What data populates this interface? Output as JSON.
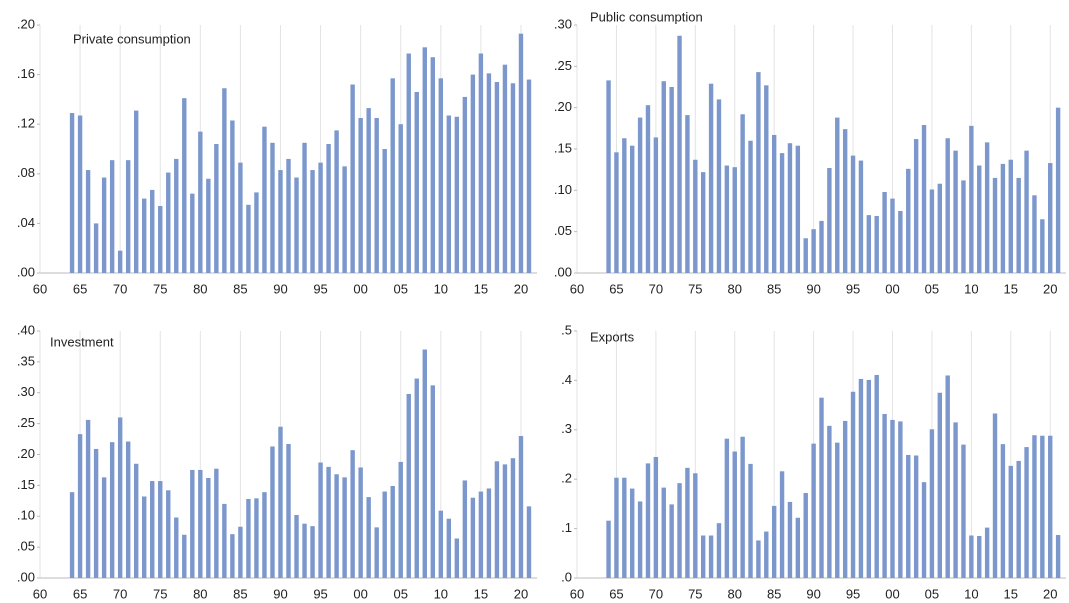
{
  "chart_data": [
    {
      "type": "bar",
      "title": "Private consumption",
      "color": "#7b97cc",
      "grid": "x",
      "x": [
        1964,
        1965,
        1966,
        1967,
        1968,
        1969,
        1970,
        1971,
        1972,
        1973,
        1974,
        1975,
        1976,
        1977,
        1978,
        1979,
        1980,
        1981,
        1982,
        1983,
        1984,
        1985,
        1986,
        1987,
        1988,
        1989,
        1990,
        1991,
        1992,
        1993,
        1994,
        1995,
        1996,
        1997,
        1998,
        1999,
        2000,
        2001,
        2002,
        2003,
        2004,
        2005,
        2006,
        2007,
        2008,
        2009,
        2010,
        2011,
        2012,
        2013,
        2014,
        2015,
        2016,
        2017,
        2018,
        2019,
        2020,
        2021
      ],
      "values": [
        0.129,
        0.127,
        0.083,
        0.04,
        0.077,
        0.091,
        0.018,
        0.091,
        0.131,
        0.06,
        0.067,
        0.054,
        0.081,
        0.092,
        0.141,
        0.064,
        0.114,
        0.076,
        0.104,
        0.149,
        0.123,
        0.089,
        0.055,
        0.065,
        0.118,
        0.105,
        0.083,
        0.092,
        0.077,
        0.105,
        0.083,
        0.089,
        0.104,
        0.115,
        0.086,
        0.152,
        0.125,
        0.133,
        0.125,
        0.1,
        0.157,
        0.12,
        0.177,
        0.146,
        0.182,
        0.174,
        0.157,
        0.127,
        0.126,
        0.142,
        0.16,
        0.177,
        0.161,
        0.154,
        0.168,
        0.153,
        0.193,
        0.156
      ],
      "xlim": [
        1960,
        2022
      ],
      "xticks": [
        {
          "value": 1960,
          "label": "60"
        },
        {
          "value": 1965,
          "label": "65"
        },
        {
          "value": 1970,
          "label": "70"
        },
        {
          "value": 1975,
          "label": "75"
        },
        {
          "value": 1980,
          "label": "80"
        },
        {
          "value": 1985,
          "label": "85"
        },
        {
          "value": 1990,
          "label": "90"
        },
        {
          "value": 1995,
          "label": "95"
        },
        {
          "value": 2000,
          "label": "00"
        },
        {
          "value": 2005,
          "label": "05"
        },
        {
          "value": 2010,
          "label": "10"
        },
        {
          "value": 2015,
          "label": "15"
        },
        {
          "value": 2020,
          "label": "20"
        }
      ],
      "ylim": [
        0,
        0.2
      ],
      "yticks": [
        {
          "value": 0,
          "label": ".00"
        },
        {
          "value": 0.04,
          "label": ".04"
        },
        {
          "value": 0.08,
          "label": ".08"
        },
        {
          "value": 0.12,
          "label": ".12"
        },
        {
          "value": 0.16,
          "label": ".16"
        },
        {
          "value": 0.2,
          "label": ".20"
        }
      ]
    },
    {
      "type": "bar",
      "title": "Public consumption",
      "color": "#7b97cc",
      "grid": "x",
      "x": [
        1964,
        1965,
        1966,
        1967,
        1968,
        1969,
        1970,
        1971,
        1972,
        1973,
        1974,
        1975,
        1976,
        1977,
        1978,
        1979,
        1980,
        1981,
        1982,
        1983,
        1984,
        1985,
        1986,
        1987,
        1988,
        1989,
        1990,
        1991,
        1992,
        1993,
        1994,
        1995,
        1996,
        1997,
        1998,
        1999,
        2000,
        2001,
        2002,
        2003,
        2004,
        2005,
        2006,
        2007,
        2008,
        2009,
        2010,
        2011,
        2012,
        2013,
        2014,
        2015,
        2016,
        2017,
        2018,
        2019,
        2020,
        2021
      ],
      "values": [
        0.233,
        0.146,
        0.163,
        0.154,
        0.188,
        0.203,
        0.164,
        0.232,
        0.225,
        0.287,
        0.191,
        0.137,
        0.122,
        0.229,
        0.21,
        0.13,
        0.128,
        0.192,
        0.16,
        0.243,
        0.227,
        0.167,
        0.145,
        0.157,
        0.154,
        0.042,
        0.053,
        0.063,
        0.127,
        0.188,
        0.174,
        0.142,
        0.136,
        0.07,
        0.069,
        0.098,
        0.09,
        0.075,
        0.126,
        0.162,
        0.179,
        0.101,
        0.108,
        0.163,
        0.148,
        0.112,
        0.178,
        0.13,
        0.158,
        0.115,
        0.132,
        0.137,
        0.115,
        0.148,
        0.094,
        0.065,
        0.133,
        0.2
      ],
      "xlim": [
        1960,
        2022
      ],
      "xticks": [
        {
          "value": 1960,
          "label": "60"
        },
        {
          "value": 1965,
          "label": "65"
        },
        {
          "value": 1970,
          "label": "70"
        },
        {
          "value": 1975,
          "label": "75"
        },
        {
          "value": 1980,
          "label": "80"
        },
        {
          "value": 1985,
          "label": "85"
        },
        {
          "value": 1990,
          "label": "90"
        },
        {
          "value": 1995,
          "label": "95"
        },
        {
          "value": 2000,
          "label": "00"
        },
        {
          "value": 2005,
          "label": "05"
        },
        {
          "value": 2010,
          "label": "10"
        },
        {
          "value": 2015,
          "label": "15"
        },
        {
          "value": 2020,
          "label": "20"
        }
      ],
      "ylim": [
        0,
        0.3
      ],
      "yticks": [
        {
          "value": 0,
          "label": ".00"
        },
        {
          "value": 0.05,
          "label": ".05"
        },
        {
          "value": 0.1,
          "label": ".10"
        },
        {
          "value": 0.15,
          "label": ".15"
        },
        {
          "value": 0.2,
          "label": ".20"
        },
        {
          "value": 0.25,
          "label": ".25"
        },
        {
          "value": 0.3,
          "label": ".30"
        }
      ]
    },
    {
      "type": "bar",
      "title": "Investment",
      "color": "#7b97cc",
      "grid": "x",
      "x": [
        1964,
        1965,
        1966,
        1967,
        1968,
        1969,
        1970,
        1971,
        1972,
        1973,
        1974,
        1975,
        1976,
        1977,
        1978,
        1979,
        1980,
        1981,
        1982,
        1983,
        1984,
        1985,
        1986,
        1987,
        1988,
        1989,
        1990,
        1991,
        1992,
        1993,
        1994,
        1995,
        1996,
        1997,
        1998,
        1999,
        2000,
        2001,
        2002,
        2003,
        2004,
        2005,
        2006,
        2007,
        2008,
        2009,
        2010,
        2011,
        2012,
        2013,
        2014,
        2015,
        2016,
        2017,
        2018,
        2019,
        2020,
        2021
      ],
      "values": [
        0.139,
        0.233,
        0.256,
        0.209,
        0.163,
        0.22,
        0.26,
        0.221,
        0.185,
        0.132,
        0.157,
        0.157,
        0.142,
        0.098,
        0.07,
        0.175,
        0.175,
        0.162,
        0.177,
        0.12,
        0.071,
        0.083,
        0.128,
        0.129,
        0.139,
        0.213,
        0.245,
        0.217,
        0.102,
        0.088,
        0.084,
        0.187,
        0.18,
        0.168,
        0.163,
        0.207,
        0.179,
        0.131,
        0.082,
        0.14,
        0.149,
        0.188,
        0.298,
        0.323,
        0.37,
        0.312,
        0.109,
        0.096,
        0.064,
        0.158,
        0.13,
        0.14,
        0.145,
        0.189,
        0.184,
        0.194,
        0.23,
        0.116
      ],
      "xlim": [
        1960,
        2022
      ],
      "xticks": [
        {
          "value": 1960,
          "label": "60"
        },
        {
          "value": 1965,
          "label": "65"
        },
        {
          "value": 1970,
          "label": "70"
        },
        {
          "value": 1975,
          "label": "75"
        },
        {
          "value": 1980,
          "label": "80"
        },
        {
          "value": 1985,
          "label": "85"
        },
        {
          "value": 1990,
          "label": "90"
        },
        {
          "value": 1995,
          "label": "95"
        },
        {
          "value": 2000,
          "label": "00"
        },
        {
          "value": 2005,
          "label": "05"
        },
        {
          "value": 2010,
          "label": "10"
        },
        {
          "value": 2015,
          "label": "15"
        },
        {
          "value": 2020,
          "label": "20"
        }
      ],
      "ylim": [
        0,
        0.4
      ],
      "yticks": [
        {
          "value": 0,
          "label": ".00"
        },
        {
          "value": 0.05,
          "label": ".05"
        },
        {
          "value": 0.1,
          "label": ".10"
        },
        {
          "value": 0.15,
          "label": ".15"
        },
        {
          "value": 0.2,
          "label": ".20"
        },
        {
          "value": 0.25,
          "label": ".25"
        },
        {
          "value": 0.3,
          "label": ".30"
        },
        {
          "value": 0.35,
          "label": ".35"
        },
        {
          "value": 0.4,
          "label": ".40"
        }
      ]
    },
    {
      "type": "bar",
      "title": "Exports",
      "color": "#7b97cc",
      "grid": "x",
      "x": [
        1964,
        1965,
        1966,
        1967,
        1968,
        1969,
        1970,
        1971,
        1972,
        1973,
        1974,
        1975,
        1976,
        1977,
        1978,
        1979,
        1980,
        1981,
        1982,
        1983,
        1984,
        1985,
        1986,
        1987,
        1988,
        1989,
        1990,
        1991,
        1992,
        1993,
        1994,
        1995,
        1996,
        1997,
        1998,
        1999,
        2000,
        2001,
        2002,
        2003,
        2004,
        2005,
        2006,
        2007,
        2008,
        2009,
        2010,
        2011,
        2012,
        2013,
        2014,
        2015,
        2016,
        2017,
        2018,
        2019,
        2020,
        2021
      ],
      "values": [
        0.116,
        0.203,
        0.203,
        0.181,
        0.155,
        0.232,
        0.245,
        0.183,
        0.149,
        0.192,
        0.223,
        0.212,
        0.086,
        0.086,
        0.111,
        0.282,
        0.256,
        0.286,
        0.231,
        0.076,
        0.094,
        0.146,
        0.216,
        0.154,
        0.122,
        0.172,
        0.272,
        0.365,
        0.308,
        0.274,
        0.318,
        0.377,
        0.403,
        0.401,
        0.411,
        0.332,
        0.32,
        0.317,
        0.249,
        0.248,
        0.194,
        0.301,
        0.375,
        0.41,
        0.315,
        0.27,
        0.086,
        0.085,
        0.102,
        0.333,
        0.271,
        0.227,
        0.237,
        0.265,
        0.289,
        0.288,
        0.288,
        0.087
      ],
      "xlim": [
        1960,
        2022
      ],
      "xticks": [
        {
          "value": 1960,
          "label": "60"
        },
        {
          "value": 1965,
          "label": "65"
        },
        {
          "value": 1970,
          "label": "70"
        },
        {
          "value": 1975,
          "label": "75"
        },
        {
          "value": 1980,
          "label": "80"
        },
        {
          "value": 1985,
          "label": "85"
        },
        {
          "value": 1990,
          "label": "90"
        },
        {
          "value": 1995,
          "label": "95"
        },
        {
          "value": 2000,
          "label": "00"
        },
        {
          "value": 2005,
          "label": "05"
        },
        {
          "value": 2010,
          "label": "10"
        },
        {
          "value": 2015,
          "label": "15"
        },
        {
          "value": 2020,
          "label": "20"
        }
      ],
      "ylim": [
        0,
        0.5
      ],
      "yticks": [
        {
          "value": 0,
          "label": ".0"
        },
        {
          "value": 0.1,
          "label": ".1"
        },
        {
          "value": 0.2,
          "label": ".2"
        },
        {
          "value": 0.3,
          "label": ".3"
        },
        {
          "value": 0.4,
          "label": ".4"
        },
        {
          "value": 0.5,
          "label": ".5"
        }
      ]
    }
  ]
}
